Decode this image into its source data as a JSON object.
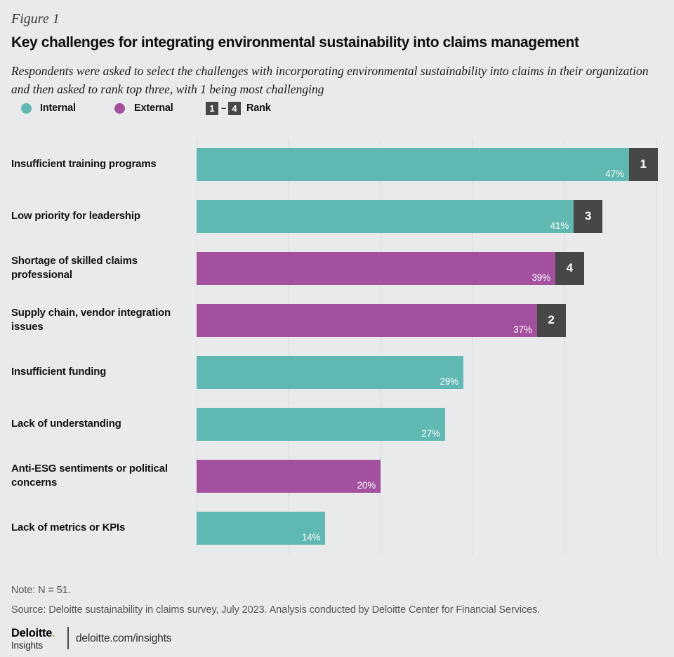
{
  "page": {
    "figure_label": "Figure 1",
    "title": "Key challenges for integrating environmental sustainability into claims management",
    "subtitle_line1": "Respondents were asked to select the challenges with incorporating environmental sustainability into claims in their organization",
    "subtitle_line2": "and then asked to rank top three, with 1 being most challenging",
    "note": "Note: N = 51.",
    "source": "Source: Deloitte sustainability in claims survey, July 2023. Analysis conducted by Deloitte Center for Financial Services.",
    "footer": {
      "logo_primary": "Deloitte",
      "logo_dot": ".",
      "logo_secondary": "Insights",
      "logo_link": "deloitte.com/insights"
    }
  },
  "legend": {
    "internal_label": "Internal",
    "external_label": "External",
    "rank_min": "1",
    "rank_dash": "–",
    "rank_max": "4",
    "rank_label": "Rank"
  },
  "colors": {
    "background": "#e9eaeb",
    "internal": "#5fb8b2",
    "external": "#a3519e",
    "rank_badge": "#474747",
    "gridline": "#d8d9da",
    "logo_dot_green": "#86bc25",
    "value_text": "#ffffff"
  },
  "chart_data": {
    "type": "bar",
    "orientation": "horizontal",
    "title": "Key challenges for integrating environmental sustainability into claims management",
    "subtitle": "Respondents were asked to select the challenges with incorporating environmental sustainability into claims in their organization and then asked to rank top three, with 1 being most challenging",
    "unit": "%",
    "xlabel": "",
    "ylabel": "",
    "xlim": [
      0,
      50
    ],
    "gridline_interval": 10,
    "tick_labels_visible": false,
    "legend_entries": [
      "Internal",
      "External",
      "1–4 Rank"
    ],
    "legend_position": "top",
    "categories": [
      "Insufficient training programs",
      "Low priority for leadership",
      "Shortage of skilled claims professional",
      "Supply chain, vendor integration issues",
      "Insufficient funding",
      "Lack of understanding",
      "Anti-ESG sentiments or political concerns",
      "Lack of metrics or KPIs"
    ],
    "values": [
      47,
      41,
      39,
      37,
      29,
      27,
      20,
      14
    ],
    "bars": [
      {
        "label": "Insufficient training programs",
        "value": 47,
        "value_label": "47%",
        "group": "Internal",
        "rank": "1"
      },
      {
        "label": "Low priority for leadership",
        "value": 41,
        "value_label": "41%",
        "group": "Internal",
        "rank": "3"
      },
      {
        "label": "Shortage of skilled claims professional",
        "value": 39,
        "value_label": "39%",
        "group": "External",
        "rank": "4"
      },
      {
        "label": "Supply chain, vendor integration issues",
        "value": 37,
        "value_label": "37%",
        "group": "External",
        "rank": "2"
      },
      {
        "label": "Insufficient funding",
        "value": 29,
        "value_label": "29%",
        "group": "Internal",
        "rank": null
      },
      {
        "label": "Lack of understanding",
        "value": 27,
        "value_label": "27%",
        "group": "Internal",
        "rank": null
      },
      {
        "label": "Anti-ESG sentiments or political concerns",
        "value": 20,
        "value_label": "20%",
        "group": "External",
        "rank": null
      },
      {
        "label": "Lack of metrics or KPIs",
        "value": 14,
        "value_label": "14%",
        "group": "Internal",
        "rank": null
      }
    ]
  }
}
